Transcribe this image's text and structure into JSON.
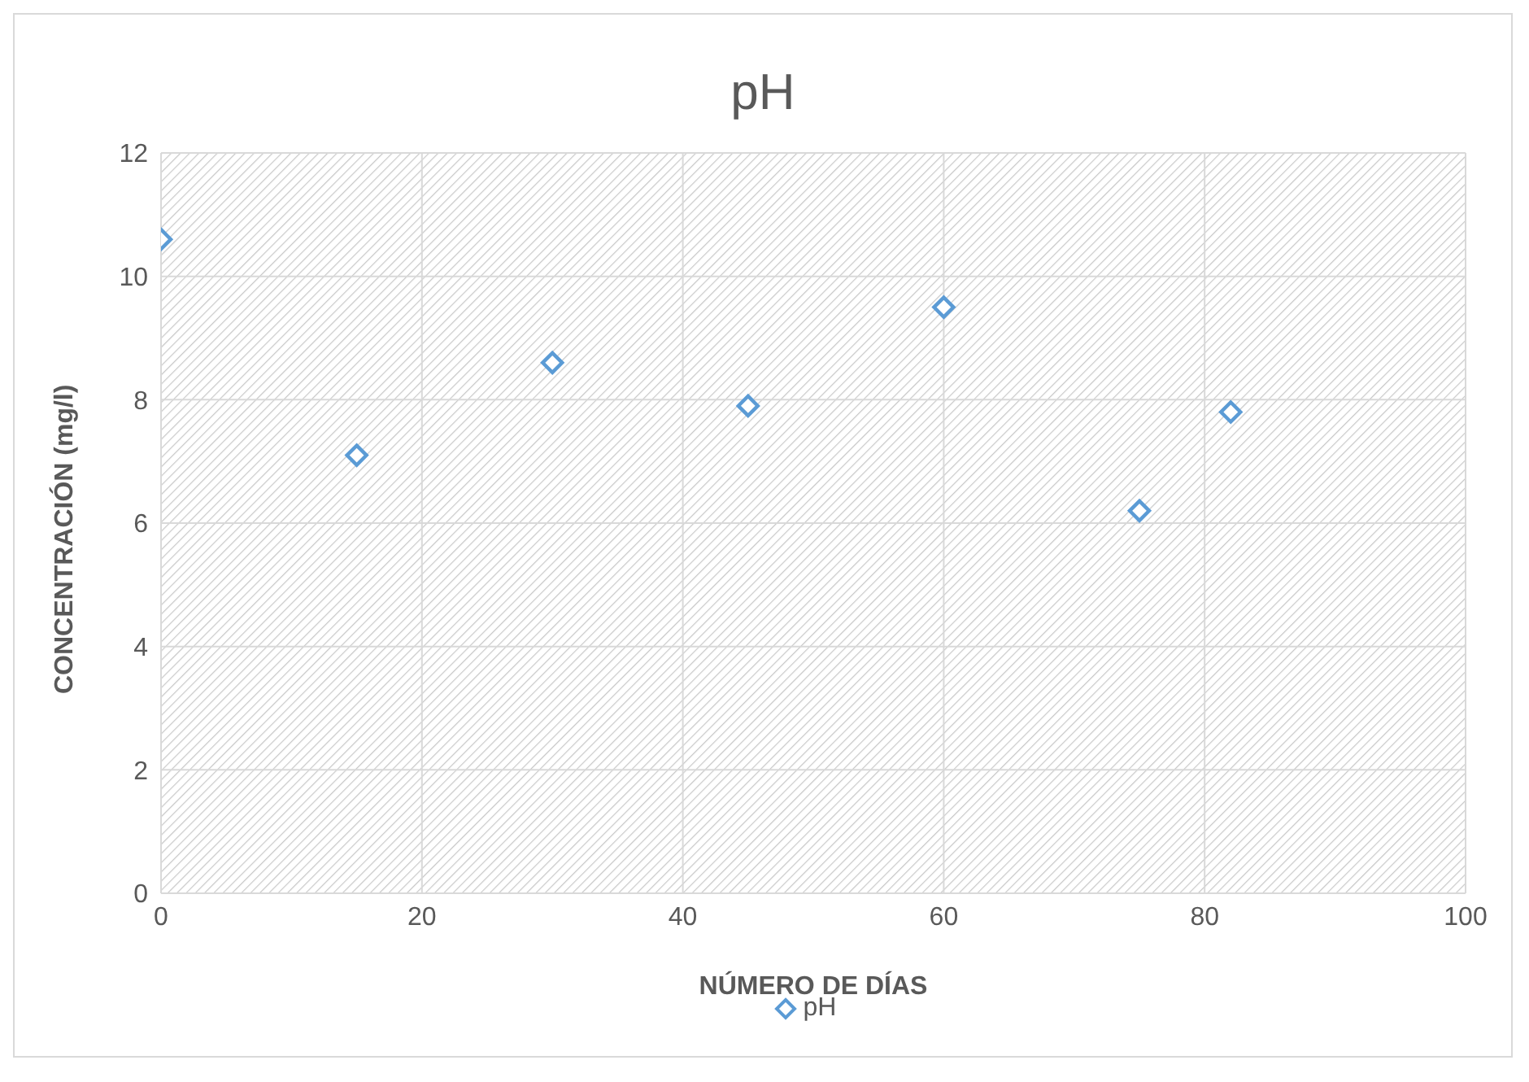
{
  "chart_data": {
    "type": "scatter",
    "title": "pH",
    "xlabel": "NÚMERO DE DÍAS",
    "ylabel": "CONCENTRACIÓN (mg/l)",
    "x": [
      0,
      15,
      30,
      45,
      60,
      75,
      82
    ],
    "series": [
      {
        "name": "pH",
        "color": "#5b9bd5",
        "values": [
          10.6,
          7.1,
          8.6,
          7.9,
          9.5,
          6.2,
          7.8
        ]
      }
    ],
    "xlim": [
      0,
      100
    ],
    "xticks": [
      0,
      20,
      40,
      60,
      80,
      100
    ],
    "ylim": [
      0,
      12
    ],
    "yticks": [
      0,
      2,
      4,
      6,
      8,
      10,
      12
    ],
    "grid": true,
    "legend": "bottom",
    "marker": "diamond"
  }
}
